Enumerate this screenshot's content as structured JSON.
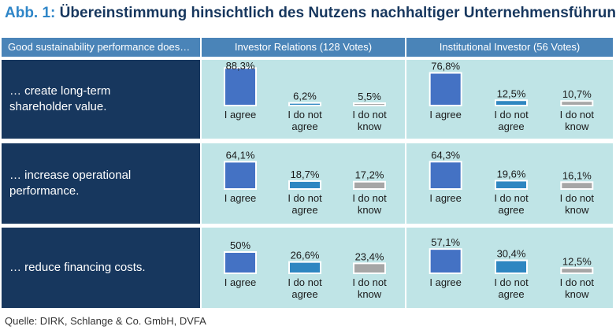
{
  "header": {
    "title_prefix": "Abb. 1:",
    "title_text": "Übereinstimmung hinsichtlich des Nutzens nachhaltiger Unternehmensführung"
  },
  "table": {
    "col0": "Good sustainability performance does…",
    "col1": "Investor Relations (128 Votes)",
    "col2": "Institutional  Investor (56 Votes)"
  },
  "source": "Quelle: DIRK, Schlange & Co. GmbH, DVFA",
  "colors": {
    "agree": "#4472c4",
    "disagree": "#2e86c1",
    "dont_know": "#a6a6a6",
    "panel_bg": "#bfe4e6",
    "label_bg": "#17375e",
    "header_bg": "#4a84b8"
  },
  "chart_data": [
    {
      "type": "bar",
      "row_label": "… create long-term shareholder value.",
      "group": "Investor Relations (128 Votes)",
      "categories": [
        "I agree",
        "I do not agree",
        "I do not know"
      ],
      "values": [
        88.3,
        6.2,
        5.5
      ],
      "value_labels": [
        "88,3%",
        "6,2%",
        "5,5%"
      ],
      "ylim": [
        0,
        100
      ]
    },
    {
      "type": "bar",
      "row_label": "… create long-term shareholder value.",
      "group": "Institutional  Investor (56 Votes)",
      "categories": [
        "I agree",
        "I do not agree",
        "I do not know"
      ],
      "values": [
        76.8,
        12.5,
        10.7
      ],
      "value_labels": [
        "76,8%",
        "12,5%",
        "10,7%"
      ],
      "ylim": [
        0,
        100
      ]
    },
    {
      "type": "bar",
      "row_label": "… increase operational performance.",
      "group": "Investor Relations (128 Votes)",
      "categories": [
        "I agree",
        "I do not agree",
        "I do not know"
      ],
      "values": [
        64.1,
        18.7,
        17.2
      ],
      "value_labels": [
        "64,1%",
        "18,7%",
        "17,2%"
      ],
      "ylim": [
        0,
        100
      ]
    },
    {
      "type": "bar",
      "row_label": "… increase operational performance.",
      "group": "Institutional  Investor (56 Votes)",
      "categories": [
        "I agree",
        "I do not agree",
        "I do not know"
      ],
      "values": [
        64.3,
        19.6,
        16.1
      ],
      "value_labels": [
        "64,3%",
        "19,6%",
        "16,1%"
      ],
      "ylim": [
        0,
        100
      ]
    },
    {
      "type": "bar",
      "row_label": "… reduce financing costs.",
      "group": "Investor Relations (128 Votes)",
      "categories": [
        "I agree",
        "I do not agree",
        "I do not know"
      ],
      "values": [
        50,
        26.6,
        23.4
      ],
      "value_labels": [
        "50%",
        "26,6%",
        "23,4%"
      ],
      "ylim": [
        0,
        100
      ]
    },
    {
      "type": "bar",
      "row_label": "… reduce financing costs.",
      "group": "Institutional  Investor (56 Votes)",
      "categories": [
        "I agree",
        "I do not agree",
        "I do not know"
      ],
      "values": [
        57.1,
        30.4,
        12.5
      ],
      "value_labels": [
        "57,1%",
        "30,4%",
        "12,5%"
      ],
      "ylim": [
        0,
        100
      ]
    }
  ],
  "rows": [
    {
      "label": "… create long-term\nshareholder value."
    },
    {
      "label": "… increase operational\nperformance."
    },
    {
      "label": "… reduce financing costs."
    }
  ],
  "category_labels": [
    "I agree",
    "I do not\nagree",
    "I do not\nknow"
  ]
}
